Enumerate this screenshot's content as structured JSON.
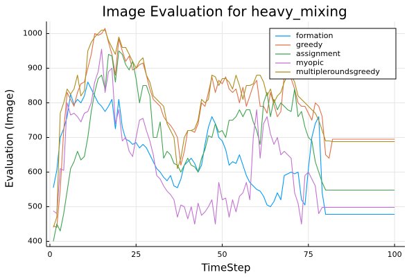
{
  "chart_data": {
    "type": "line",
    "title": "Image Evaluation for heavy_mixing",
    "xlabel": "TimeStep",
    "ylabel": "Evaluation (Image)",
    "xlim": [
      -1,
      103
    ],
    "ylim": [
      385,
      1035
    ],
    "xticks": [
      0,
      25,
      50,
      75,
      100
    ],
    "yticks": [
      400,
      500,
      600,
      700,
      800,
      900,
      1000
    ],
    "grid": true,
    "legend_position": "top-right",
    "series": [
      {
        "name": "formation",
        "color": "#009AFA",
        "x": [
          1,
          2,
          3,
          4,
          5,
          6,
          7,
          8,
          9,
          10,
          11,
          12,
          13,
          14,
          15,
          16,
          17,
          18,
          19,
          20,
          21,
          22,
          23,
          24,
          25,
          26,
          27,
          28,
          29,
          30,
          31,
          32,
          33,
          34,
          35,
          36,
          37,
          38,
          39,
          40,
          41,
          42,
          43,
          44,
          45,
          46,
          47,
          48,
          49,
          50,
          51,
          52,
          53,
          54,
          55,
          56,
          57,
          58,
          59,
          60,
          61,
          62,
          63,
          64,
          65,
          66,
          67,
          68,
          69,
          70,
          71,
          72,
          73,
          74,
          75,
          76,
          77,
          78,
          79,
          80,
          100
        ],
        "y": [
          555,
          605,
          700,
          725,
          760,
          825,
          795,
          810,
          800,
          820,
          860,
          840,
          820,
          800,
          790,
          775,
          790,
          810,
          725,
          810,
          730,
          695,
          690,
          680,
          685,
          670,
          680,
          670,
          650,
          630,
          610,
          600,
          585,
          575,
          590,
          560,
          555,
          580,
          620,
          630,
          640,
          625,
          600,
          620,
          680,
          730,
          760,
          740,
          700,
          690,
          665,
          620,
          630,
          625,
          650,
          620,
          590,
          570,
          560,
          550,
          545,
          530,
          505,
          500,
          515,
          540,
          520,
          590,
          595,
          600,
          595,
          600,
          520,
          505,
          610,
          700,
          740,
          760,
          540,
          478,
          478
        ]
      },
      {
        "name": "greedy",
        "color": "#E26F46",
        "x": [
          1,
          2,
          3,
          4,
          5,
          6,
          7,
          8,
          9,
          10,
          11,
          12,
          13,
          14,
          15,
          16,
          17,
          18,
          19,
          20,
          21,
          22,
          23,
          24,
          25,
          26,
          27,
          28,
          29,
          30,
          31,
          32,
          33,
          34,
          35,
          36,
          37,
          38,
          39,
          40,
          41,
          42,
          43,
          44,
          45,
          46,
          47,
          48,
          49,
          50,
          51,
          52,
          53,
          54,
          55,
          56,
          57,
          58,
          59,
          60,
          61,
          62,
          63,
          64,
          65,
          66,
          67,
          68,
          69,
          70,
          71,
          72,
          73,
          74,
          75,
          76,
          77,
          78,
          79,
          80,
          81,
          82,
          100
        ],
        "y": [
          445,
          440,
          550,
          720,
          830,
          810,
          790,
          830,
          855,
          860,
          900,
          940,
          1000,
          995,
          1000,
          1015,
          975,
          940,
          880,
          985,
          950,
          920,
          935,
          895,
          900,
          910,
          915,
          880,
          840,
          810,
          800,
          790,
          760,
          745,
          735,
          720,
          700,
          620,
          660,
          720,
          720,
          715,
          740,
          800,
          790,
          830,
          875,
          830,
          865,
          855,
          875,
          840,
          830,
          840,
          800,
          845,
          790,
          820,
          850,
          865,
          790,
          790,
          770,
          830,
          795,
          760,
          775,
          880,
          890,
          870,
          840,
          800,
          790,
          790,
          770,
          750,
          800,
          790,
          760,
          650,
          640,
          695,
          695
        ]
      },
      {
        "name": "assignment",
        "color": "#3DA44D",
        "x": [
          1,
          2,
          3,
          4,
          5,
          6,
          7,
          8,
          9,
          10,
          11,
          12,
          13,
          14,
          15,
          16,
          17,
          18,
          19,
          20,
          21,
          22,
          23,
          24,
          25,
          26,
          27,
          28,
          29,
          30,
          31,
          32,
          33,
          34,
          35,
          36,
          37,
          38,
          39,
          40,
          41,
          42,
          43,
          44,
          45,
          46,
          47,
          48,
          49,
          50,
          51,
          52,
          53,
          54,
          55,
          56,
          57,
          58,
          59,
          60,
          61,
          62,
          63,
          64,
          65,
          66,
          67,
          68,
          69,
          70,
          71,
          72,
          73,
          74,
          75,
          76,
          77,
          78,
          79,
          80,
          100
        ],
        "y": [
          400,
          450,
          430,
          480,
          545,
          610,
          630,
          660,
          635,
          645,
          700,
          775,
          830,
          870,
          880,
          840,
          940,
          935,
          860,
          950,
          940,
          910,
          895,
          920,
          870,
          800,
          850,
          850,
          820,
          700,
          700,
          745,
          640,
          660,
          650,
          625,
          620,
          600,
          620,
          640,
          620,
          615,
          600,
          640,
          665,
          705,
          700,
          740,
          715,
          720,
          700,
          750,
          750,
          760,
          780,
          760,
          780,
          780,
          745,
          720,
          680,
          800,
          830,
          760,
          810,
          780,
          800,
          790,
          780,
          775,
          840,
          760,
          775,
          730,
          700,
          690,
          630,
          600,
          570,
          548,
          548
        ]
      },
      {
        "name": "myopic",
        "color": "#C271D2",
        "x": [
          1,
          2,
          3,
          4,
          5,
          6,
          7,
          8,
          9,
          10,
          11,
          12,
          13,
          14,
          15,
          16,
          17,
          18,
          19,
          20,
          21,
          22,
          23,
          24,
          25,
          26,
          27,
          28,
          29,
          30,
          31,
          32,
          33,
          34,
          35,
          36,
          37,
          38,
          39,
          40,
          41,
          42,
          43,
          44,
          45,
          46,
          47,
          48,
          49,
          50,
          51,
          52,
          53,
          54,
          55,
          56,
          57,
          58,
          59,
          60,
          61,
          62,
          63,
          64,
          65,
          66,
          67,
          68,
          69,
          70,
          71,
          72,
          73,
          74,
          75,
          76,
          77,
          78,
          79,
          80,
          100
        ],
        "y": [
          488,
          480,
          610,
          605,
          800,
          765,
          770,
          760,
          745,
          770,
          775,
          800,
          860,
          890,
          955,
          830,
          890,
          900,
          740,
          780,
          690,
          700,
          660,
          645,
          700,
          750,
          755,
          720,
          690,
          650,
          590,
          580,
          560,
          545,
          535,
          520,
          470,
          505,
          500,
          465,
          500,
          450,
          510,
          475,
          485,
          500,
          520,
          450,
          570,
          520,
          525,
          470,
          520,
          485,
          530,
          540,
          570,
          520,
          700,
          780,
          640,
          740,
          760,
          710,
          680,
          700,
          650,
          660,
          650,
          640,
          540,
          510,
          450,
          590,
          600,
          580,
          560,
          480,
          498,
          498,
          498
        ]
      },
      {
        "name": "multipleroundsgreedy",
        "color": "#AC8D18",
        "x": [
          1,
          2,
          3,
          4,
          5,
          6,
          7,
          8,
          9,
          10,
          11,
          12,
          13,
          14,
          15,
          16,
          17,
          18,
          19,
          20,
          21,
          22,
          23,
          24,
          25,
          26,
          27,
          28,
          29,
          30,
          31,
          32,
          33,
          34,
          35,
          36,
          37,
          38,
          39,
          40,
          41,
          42,
          43,
          44,
          45,
          46,
          47,
          48,
          49,
          50,
          51,
          52,
          53,
          54,
          55,
          56,
          57,
          58,
          59,
          60,
          61,
          62,
          63,
          64,
          65,
          66,
          67,
          68,
          69,
          70,
          71,
          72,
          73,
          74,
          75,
          76,
          77,
          78,
          79,
          80,
          81,
          82,
          100
        ],
        "y": [
          440,
          470,
          770,
          800,
          840,
          825,
          840,
          880,
          820,
          835,
          950,
          975,
          990,
          1000,
          1010,
          1010,
          980,
          960,
          940,
          990,
          960,
          960,
          940,
          920,
          900,
          920,
          930,
          880,
          860,
          820,
          810,
          800,
          790,
          740,
          720,
          700,
          610,
          640,
          700,
          720,
          720,
          725,
          750,
          810,
          800,
          810,
          880,
          875,
          850,
          870,
          870,
          860,
          840,
          880,
          850,
          810,
          850,
          850,
          855,
          880,
          880,
          860,
          820,
          840,
          800,
          820,
          830,
          860,
          880,
          880,
          860,
          820,
          810,
          800,
          790,
          780,
          770,
          750,
          720,
          690,
          690,
          688,
          688
        ]
      }
    ]
  }
}
